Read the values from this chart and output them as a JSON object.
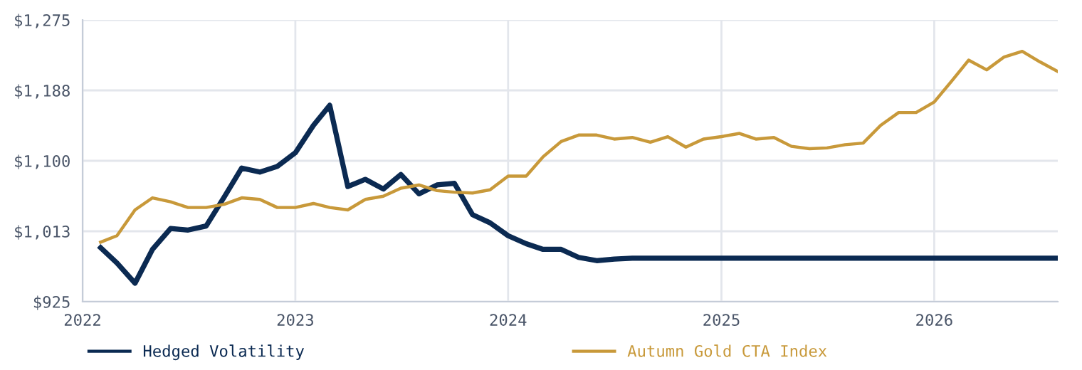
{
  "chart_data": {
    "type": "line",
    "x": [
      "2022-02",
      "2022-03",
      "2022-04",
      "2022-05",
      "2022-06",
      "2022-07",
      "2022-08",
      "2022-09",
      "2022-10",
      "2022-11",
      "2022-12",
      "2023-01",
      "2023-02",
      "2023-03",
      "2023-04",
      "2023-05",
      "2023-06",
      "2023-07",
      "2023-08",
      "2023-09",
      "2023-10",
      "2023-11",
      "2023-12",
      "2024-01",
      "2024-02",
      "2024-03",
      "2024-04",
      "2024-05",
      "2024-06",
      "2024-07",
      "2024-08",
      "2024-09",
      "2024-10",
      "2024-11",
      "2024-12",
      "2025-01",
      "2025-02",
      "2025-03",
      "2025-04",
      "2025-05",
      "2025-06",
      "2025-07",
      "2025-08",
      "2025-09",
      "2025-10",
      "2025-11",
      "2025-12",
      "2026-01",
      "2026-02",
      "2026-03",
      "2026-04",
      "2026-05",
      "2026-06",
      "2026-07",
      "2026-08"
    ],
    "series": [
      {
        "name": "Hedged Volatility",
        "color": "#0b2a52",
        "values": [
          992,
          973,
          948,
          990,
          1016,
          1014,
          1019,
          1055,
          1091,
          1086,
          1093,
          1110,
          1144,
          1169,
          1068,
          1077,
          1065,
          1083,
          1059,
          1070,
          1072,
          1033,
          1023,
          1007,
          997,
          990,
          990,
          980,
          976,
          978,
          979,
          979,
          979,
          979,
          979,
          979,
          979,
          979,
          979,
          979,
          979,
          979,
          979,
          979,
          979,
          979,
          979,
          979,
          979,
          979,
          979,
          979,
          979,
          979,
          979
        ]
      },
      {
        "name": "Autumn Gold CTA Index",
        "color": "#c8993a",
        "values": [
          999,
          1007,
          1039,
          1054,
          1049,
          1042,
          1042,
          1046,
          1054,
          1052,
          1042,
          1042,
          1047,
          1042,
          1039,
          1052,
          1056,
          1066,
          1070,
          1063,
          1061,
          1060,
          1064,
          1081,
          1081,
          1105,
          1124,
          1132,
          1132,
          1127,
          1129,
          1123,
          1130,
          1117,
          1127,
          1130,
          1134,
          1127,
          1129,
          1118,
          1115,
          1116,
          1120,
          1122,
          1144,
          1160,
          1160,
          1173,
          1200,
          1225,
          1213,
          1229,
          1236,
          1223,
          1211
        ]
      }
    ],
    "xlim": [
      "2022-01-01",
      "2026-08-01"
    ],
    "xticks": [
      {
        "value": "2022-01-01",
        "label": "2022"
      },
      {
        "value": "2023-01-01",
        "label": "2023"
      },
      {
        "value": "2024-01-01",
        "label": "2024"
      },
      {
        "value": "2025-01-01",
        "label": "2025"
      },
      {
        "value": "2026-01-01",
        "label": "2026"
      }
    ],
    "ylim": [
      925,
      1275
    ],
    "yticks": [
      {
        "value": 925,
        "label": "$925"
      },
      {
        "value": 1012.5,
        "label": "$1,013"
      },
      {
        "value": 1100,
        "label": "$1,100"
      },
      {
        "value": 1187.5,
        "label": "$1,188"
      },
      {
        "value": 1275,
        "label": "$1,275"
      }
    ],
    "grid": true,
    "legend": "bottom",
    "marker": "none",
    "line_style": "solid"
  }
}
